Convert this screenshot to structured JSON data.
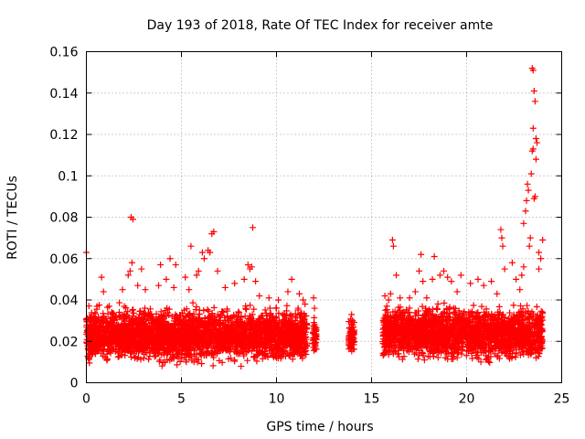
{
  "chart_data": {
    "type": "scatter",
    "title": "Day 193 of 2018, Rate Of TEC Index for receiver amte",
    "xlabel": "GPS time / hours",
    "ylabel": "ROTI / TECUs",
    "xlim": [
      0,
      25
    ],
    "ylim": [
      0,
      0.16
    ],
    "xticks": [
      0,
      5,
      10,
      15,
      20,
      25
    ],
    "yticks": [
      0,
      0.02,
      0.04,
      0.06,
      0.08,
      0.1,
      0.12,
      0.14,
      0.16
    ],
    "xtick_labels": [
      "0",
      "5",
      "10",
      "15",
      "20",
      "25"
    ],
    "ytick_labels": [
      "0",
      "0.02",
      "0.04",
      "0.06",
      "0.08",
      "0.1",
      "0.12",
      "0.14",
      "0.16"
    ],
    "grid": true,
    "marker": "+",
    "series_color": "#ff0000",
    "bulk_bands": [
      {
        "x_start": 0.0,
        "x_end": 11.6,
        "y_low": 0.007,
        "y_high": 0.035
      },
      {
        "x_start": 11.9,
        "x_end": 12.1,
        "y_low": 0.012,
        "y_high": 0.03
      },
      {
        "x_start": 13.8,
        "x_end": 14.1,
        "y_low": 0.01,
        "y_high": 0.032
      },
      {
        "x_start": 15.6,
        "x_end": 24.0,
        "y_low": 0.008,
        "y_high": 0.036
      }
    ],
    "points": [
      [
        0.0,
        0.063
      ],
      [
        0.1,
        0.026
      ],
      [
        0.6,
        0.03
      ],
      [
        0.8,
        0.051
      ],
      [
        0.9,
        0.044
      ],
      [
        1.2,
        0.037
      ],
      [
        1.9,
        0.045
      ],
      [
        2.2,
        0.052
      ],
      [
        2.3,
        0.054
      ],
      [
        2.4,
        0.058
      ],
      [
        2.35,
        0.08
      ],
      [
        2.45,
        0.079
      ],
      [
        2.7,
        0.047
      ],
      [
        2.9,
        0.055
      ],
      [
        3.1,
        0.045
      ],
      [
        3.8,
        0.047
      ],
      [
        3.9,
        0.057
      ],
      [
        4.2,
        0.05
      ],
      [
        4.4,
        0.06
      ],
      [
        4.6,
        0.046
      ],
      [
        4.7,
        0.057
      ],
      [
        5.2,
        0.051
      ],
      [
        5.4,
        0.045
      ],
      [
        5.5,
        0.066
      ],
      [
        5.8,
        0.052
      ],
      [
        5.9,
        0.054
      ],
      [
        6.1,
        0.063
      ],
      [
        6.2,
        0.06
      ],
      [
        6.4,
        0.064
      ],
      [
        6.5,
        0.063
      ],
      [
        6.6,
        0.072
      ],
      [
        6.7,
        0.073
      ],
      [
        6.9,
        0.054
      ],
      [
        7.3,
        0.046
      ],
      [
        7.8,
        0.048
      ],
      [
        8.3,
        0.05
      ],
      [
        8.5,
        0.057
      ],
      [
        8.6,
        0.055
      ],
      [
        8.7,
        0.056
      ],
      [
        8.75,
        0.075
      ],
      [
        8.9,
        0.049
      ],
      [
        9.1,
        0.042
      ],
      [
        9.6,
        0.041
      ],
      [
        10.1,
        0.04
      ],
      [
        10.6,
        0.044
      ],
      [
        10.8,
        0.05
      ],
      [
        11.2,
        0.043
      ],
      [
        11.4,
        0.04
      ],
      [
        11.5,
        0.038
      ],
      [
        11.95,
        0.041
      ],
      [
        12.0,
        0.036
      ],
      [
        13.95,
        0.033
      ],
      [
        14.0,
        0.03
      ],
      [
        15.7,
        0.042
      ],
      [
        15.9,
        0.04
      ],
      [
        16.0,
        0.043
      ],
      [
        16.1,
        0.069
      ],
      [
        16.15,
        0.066
      ],
      [
        16.3,
        0.052
      ],
      [
        16.5,
        0.041
      ],
      [
        17.0,
        0.041
      ],
      [
        17.3,
        0.044
      ],
      [
        17.5,
        0.054
      ],
      [
        17.6,
        0.062
      ],
      [
        17.7,
        0.049
      ],
      [
        17.9,
        0.041
      ],
      [
        18.2,
        0.05
      ],
      [
        18.3,
        0.061
      ],
      [
        18.6,
        0.052
      ],
      [
        18.8,
        0.054
      ],
      [
        19.0,
        0.051
      ],
      [
        19.2,
        0.049
      ],
      [
        19.5,
        0.044
      ],
      [
        19.7,
        0.052
      ],
      [
        20.2,
        0.048
      ],
      [
        20.6,
        0.05
      ],
      [
        20.9,
        0.047
      ],
      [
        21.3,
        0.049
      ],
      [
        21.6,
        0.043
      ],
      [
        21.8,
        0.074
      ],
      [
        21.85,
        0.07
      ],
      [
        21.9,
        0.066
      ],
      [
        22.0,
        0.055
      ],
      [
        22.4,
        0.058
      ],
      [
        22.6,
        0.05
      ],
      [
        22.8,
        0.045
      ],
      [
        22.9,
        0.052
      ],
      [
        23.0,
        0.056
      ],
      [
        23.0,
        0.077
      ],
      [
        23.1,
        0.083
      ],
      [
        23.15,
        0.088
      ],
      [
        23.2,
        0.096
      ],
      [
        23.25,
        0.093
      ],
      [
        23.3,
        0.066
      ],
      [
        23.35,
        0.07
      ],
      [
        23.4,
        0.101
      ],
      [
        23.45,
        0.112
      ],
      [
        23.5,
        0.113
      ],
      [
        23.55,
        0.089
      ],
      [
        23.6,
        0.09
      ],
      [
        23.45,
        0.152
      ],
      [
        23.5,
        0.151
      ],
      [
        23.55,
        0.141
      ],
      [
        23.6,
        0.136
      ],
      [
        23.5,
        0.123
      ],
      [
        23.65,
        0.118
      ],
      [
        23.7,
        0.116
      ],
      [
        23.65,
        0.108
      ],
      [
        23.8,
        0.063
      ],
      [
        23.9,
        0.06
      ],
      [
        24.0,
        0.069
      ],
      [
        23.8,
        0.055
      ]
    ]
  }
}
